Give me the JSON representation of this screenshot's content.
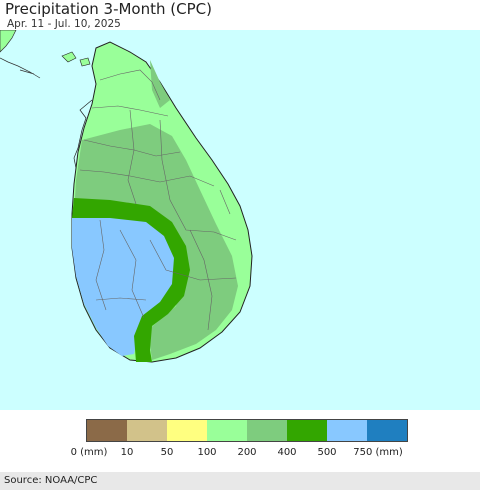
{
  "title": "Precipitation 3-Month (CPC)",
  "date_range": "Apr. 11 - Jul. 10, 2025",
  "source": "Source: NOAA/CPC",
  "colors": {
    "ocean": "#ccffff",
    "land_outside": "#ffffff"
  },
  "legend": {
    "colors": [
      "#8b6a48",
      "#d2c28a",
      "#ffff80",
      "#99ff99",
      "#7ecc7e",
      "#33a600",
      "#88c8ff",
      "#1f7fc0"
    ],
    "labels": [
      "0 (mm)",
      "10",
      "50",
      "100",
      "200",
      "400",
      "500",
      "750 (mm)"
    ]
  }
}
